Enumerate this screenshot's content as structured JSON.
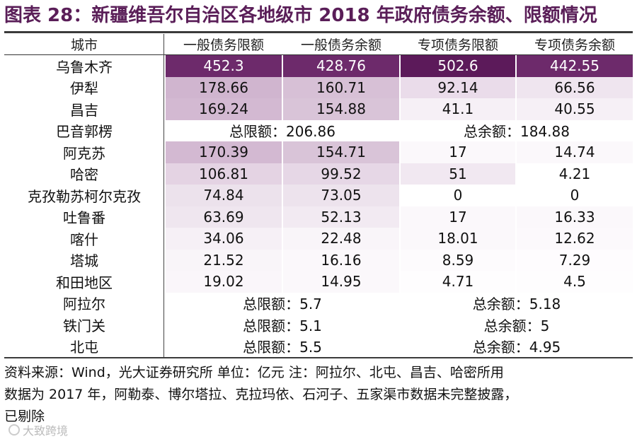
{
  "title": "图表 28：新疆维吾尔自治区各地级市 2018 年政府债务余额、限额情况",
  "header": [
    "城市",
    "一般债务限额",
    "一般债务余额",
    "专项债务限额",
    "专项债务余额"
  ],
  "rows": [
    {
      "city": "乌鲁木齐",
      "v": [
        "452.3",
        "428.76",
        "502.6",
        "442.55"
      ],
      "bg": [
        "#6d2a6b",
        "#6d2a6b",
        "#5c1a5a",
        "#6d2a6b"
      ],
      "fg": [
        "#ffffff",
        "#ffffff",
        "#ffffff",
        "#ffffff"
      ]
    },
    {
      "city": "伊犁",
      "v": [
        "178.66",
        "160.71",
        "92.14",
        "66.56"
      ],
      "bg": [
        "#d0b5cf",
        "#d7c0d6",
        "#eadcea",
        "#efe5ef"
      ],
      "fg": [
        "#111111",
        "#111111",
        "#111111",
        "#111111"
      ]
    },
    {
      "city": "昌吉",
      "v": [
        "169.24",
        "154.88",
        "41.1",
        "40.55"
      ],
      "bg": [
        "#d3b9d2",
        "#d9c4d8",
        "#f6f0f6",
        "#f6f0f6"
      ],
      "fg": [
        "#111111",
        "#111111",
        "#111111",
        "#111111"
      ]
    },
    {
      "city": "巴音郭楞",
      "merged": true,
      "limit": "总限额：206.86",
      "balance": "总余额：184.88"
    },
    {
      "city": "阿克苏",
      "v": [
        "170.39",
        "154.71",
        "17",
        "14.74"
      ],
      "bg": [
        "#d3b9d2",
        "#d9c4d8",
        "#fbf8fb",
        "#fbf8fb"
      ],
      "fg": [
        "#111111",
        "#111111",
        "#111111",
        "#111111"
      ]
    },
    {
      "city": "哈密",
      "v": [
        "106.81",
        "99.52",
        "51",
        "4.21"
      ],
      "bg": [
        "#e4d3e3",
        "#e6d7e6",
        "#f1e8f1",
        "#ffffff"
      ],
      "fg": [
        "#111111",
        "#111111",
        "#111111",
        "#111111"
      ]
    },
    {
      "city": "克孜勒苏柯尔克孜",
      "v": [
        "74.84",
        "73.05",
        "0",
        "0"
      ],
      "bg": [
        "#ece2ec",
        "#ede3ed",
        "#ffffff",
        "#ffffff"
      ],
      "fg": [
        "#111111",
        "#111111",
        "#111111",
        "#111111"
      ]
    },
    {
      "city": "吐鲁番",
      "v": [
        "63.69",
        "52.13",
        "17",
        "16.33"
      ],
      "bg": [
        "#efe6ef",
        "#f2eaf2",
        "#fbf8fb",
        "#fbf8fb"
      ],
      "fg": [
        "#111111",
        "#111111",
        "#111111",
        "#111111"
      ]
    },
    {
      "city": "喀什",
      "v": [
        "34.06",
        "22.48",
        "18.01",
        "12.62"
      ],
      "bg": [
        "#f6f0f6",
        "#f9f5f9",
        "#fbf8fb",
        "#fcf9fc"
      ],
      "fg": [
        "#111111",
        "#111111",
        "#111111",
        "#111111"
      ]
    },
    {
      "city": "塔城",
      "v": [
        "21.52",
        "16.16",
        "8.59",
        "7.29"
      ],
      "bg": [
        "#f9f5f9",
        "#fbf8fb",
        "#fdfbfd",
        "#fefcfe"
      ],
      "fg": [
        "#111111",
        "#111111",
        "#111111",
        "#111111"
      ]
    },
    {
      "city": "和田地区",
      "v": [
        "19.02",
        "14.95",
        "4.71",
        "4.5"
      ],
      "bg": [
        "#faf6fa",
        "#fbf8fb",
        "#fefdfe",
        "#fefdfe"
      ],
      "fg": [
        "#111111",
        "#111111",
        "#111111",
        "#111111"
      ]
    },
    {
      "city": "阿拉尔",
      "merged": true,
      "limit": "总限额：5.7",
      "balance": "总余额：5.18"
    },
    {
      "city": "铁门关",
      "merged": true,
      "limit": "总限额：5.1",
      "balance": "总余额：5"
    },
    {
      "city": "北屯",
      "merged": true,
      "limit": "总限额：5.5",
      "balance": "总余额：4.95"
    }
  ],
  "footer": [
    "资料来源：Wind，光大证券研究所  单位：亿元    注：阿拉尔、北屯、昌吉、哈密所用",
    "数据为 2017 年，阿勒泰、博尔塔拉、克拉玛依、石河子、五家渠市数据未完整披露，",
    "已剔除"
  ],
  "watermark": "大致跨境"
}
